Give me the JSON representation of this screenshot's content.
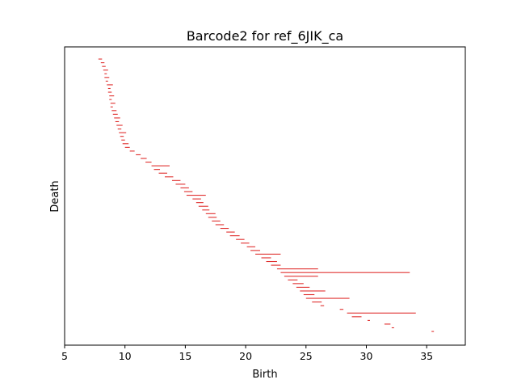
{
  "chart_data": {
    "type": "barcode",
    "title": "Barcode2 for ref_6JIK_ca",
    "xlabel": "Birth",
    "ylabel": "Death",
    "xlim": [
      5,
      38.2
    ],
    "xticks": [
      5,
      10,
      15,
      20,
      25,
      30,
      35
    ],
    "yticks": [],
    "bar_color": "#e0302f",
    "bars": [
      [
        7.8,
        8.1
      ],
      [
        8.0,
        8.3
      ],
      [
        8.1,
        8.4
      ],
      [
        8.2,
        8.6
      ],
      [
        8.3,
        8.5
      ],
      [
        8.3,
        8.7
      ],
      [
        8.4,
        8.6
      ],
      [
        8.5,
        9.0
      ],
      [
        8.6,
        8.8
      ],
      [
        8.6,
        8.9
      ],
      [
        8.7,
        9.1
      ],
      [
        8.7,
        8.9
      ],
      [
        8.8,
        9.2
      ],
      [
        8.8,
        9.0
      ],
      [
        8.9,
        9.3
      ],
      [
        9.0,
        9.4
      ],
      [
        9.1,
        9.6
      ],
      [
        9.2,
        9.5
      ],
      [
        9.3,
        9.8
      ],
      [
        9.4,
        9.7
      ],
      [
        9.5,
        10.1
      ],
      [
        9.6,
        9.9
      ],
      [
        9.7,
        10.0
      ],
      [
        9.8,
        10.3
      ],
      [
        10.0,
        10.4
      ],
      [
        10.4,
        10.8
      ],
      [
        10.9,
        11.3
      ],
      [
        11.3,
        11.8
      ],
      [
        11.7,
        12.2
      ],
      [
        12.2,
        13.7
      ],
      [
        12.4,
        12.9
      ],
      [
        12.8,
        13.5
      ],
      [
        13.3,
        14.0
      ],
      [
        13.9,
        14.6
      ],
      [
        14.2,
        15.0
      ],
      [
        14.6,
        15.3
      ],
      [
        14.9,
        15.6
      ],
      [
        15.1,
        16.7
      ],
      [
        15.6,
        16.3
      ],
      [
        15.9,
        16.5
      ],
      [
        16.1,
        16.9
      ],
      [
        16.4,
        17.0
      ],
      [
        16.7,
        17.5
      ],
      [
        16.9,
        17.6
      ],
      [
        17.2,
        17.9
      ],
      [
        17.5,
        18.2
      ],
      [
        17.9,
        18.6
      ],
      [
        18.4,
        19.1
      ],
      [
        18.7,
        19.5
      ],
      [
        19.2,
        19.9
      ],
      [
        19.6,
        20.3
      ],
      [
        20.1,
        20.8
      ],
      [
        20.4,
        21.2
      ],
      [
        20.8,
        22.9
      ],
      [
        21.3,
        22.1
      ],
      [
        21.7,
        22.6
      ],
      [
        22.1,
        22.9
      ],
      [
        22.6,
        26.0
      ],
      [
        22.9,
        33.6
      ],
      [
        23.2,
        26.0
      ],
      [
        23.5,
        24.3
      ],
      [
        23.9,
        24.8
      ],
      [
        24.2,
        25.3
      ],
      [
        24.5,
        26.6
      ],
      [
        24.8,
        25.7
      ],
      [
        25.0,
        28.6
      ],
      [
        25.5,
        26.3
      ],
      [
        26.2,
        26.5
      ],
      [
        27.8,
        28.1
      ],
      [
        28.4,
        34.1
      ],
      [
        28.8,
        29.6
      ],
      [
        30.1,
        30.3
      ],
      [
        31.5,
        32.0
      ],
      [
        32.1,
        32.3
      ],
      [
        35.4,
        35.6
      ]
    ]
  }
}
